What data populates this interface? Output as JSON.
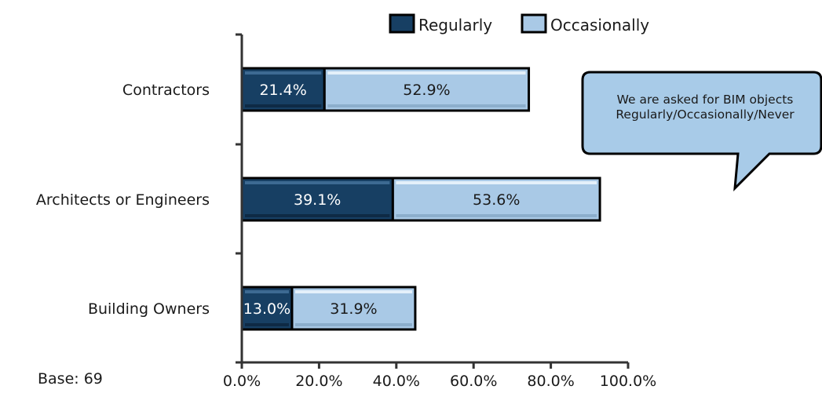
{
  "chart_data": {
    "type": "bar",
    "orientation": "horizontal",
    "stacked": true,
    "categories": [
      "Contractors",
      "Architects or Engineers",
      "Building Owners"
    ],
    "series": [
      {
        "name": "Regularly",
        "values": [
          21.4,
          39.1,
          13.0
        ],
        "labels": [
          "21.4%",
          "39.1%",
          "13.0%"
        ]
      },
      {
        "name": "Occasionally",
        "values": [
          52.9,
          53.6,
          31.9
        ],
        "labels": [
          "52.9%",
          "53.6%",
          "31.9%"
        ]
      }
    ],
    "xlim": [
      0,
      100
    ],
    "xticks": [
      "0.0%",
      "20.0%",
      "40.0%",
      "60.0%",
      "80.0%",
      "100.0%"
    ],
    "legend": "top",
    "grid": false
  },
  "colors": {
    "regularly": "#173f63",
    "occasionally": "#a9c9e6",
    "outline": "#000000",
    "callout_fill": "#a8cbe8"
  },
  "note": "Base: 69",
  "callout": {
    "line1": "We are asked for BIM objects",
    "line2": "Regularly/Occasionally/Never"
  }
}
